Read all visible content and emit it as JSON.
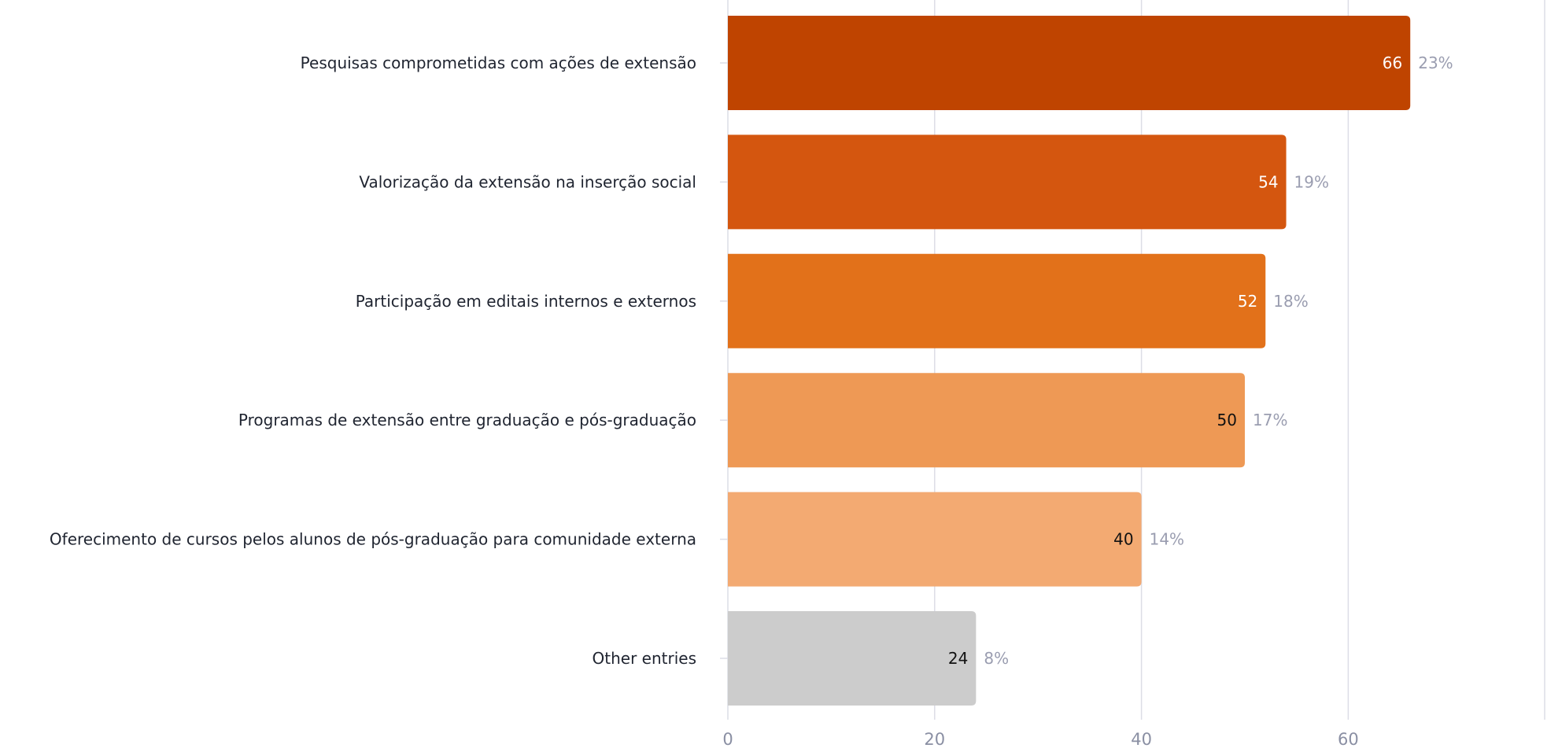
{
  "chart_data": {
    "type": "bar",
    "orientation": "horizontal",
    "categories": [
      "Pesquisas comprometidas com ações de extensão",
      "Valorização da extensão na inserção social",
      "Participação em editais internos e externos",
      "Programas de extensão entre graduação e pós-graduação",
      "Oferecimento de cursos pelos alunos de pós-graduação para comunidade externa",
      "Other entries"
    ],
    "values": [
      66,
      54,
      52,
      50,
      40,
      24
    ],
    "percent_labels": [
      "23%",
      "19%",
      "18%",
      "17%",
      "14%",
      "8%"
    ],
    "bar_colors": [
      "#bf4400",
      "#d4560f",
      "#e2711a",
      "#ee9955",
      "#f3aa72",
      "#cccccc"
    ],
    "value_label_colors": [
      "#ffffff",
      "#ffffff",
      "#ffffff",
      "#111111",
      "#111111",
      "#111111"
    ],
    "x_ticks": [
      0,
      20,
      40,
      60
    ],
    "xlim": [
      0,
      79
    ],
    "grid": true,
    "title": "",
    "xlabel": "",
    "ylabel": ""
  }
}
